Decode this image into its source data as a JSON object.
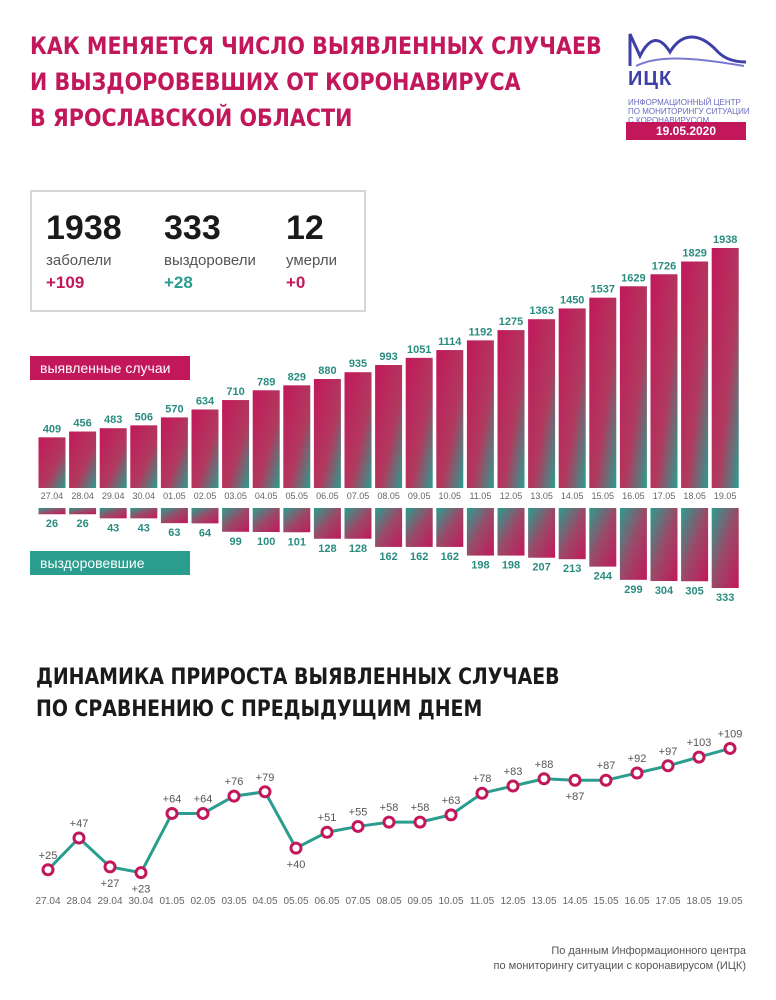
{
  "header": {
    "title_lines": [
      "КАК МЕНЯЕТСЯ ЧИСЛО ВЫЯВЛЕННЫХ СЛУЧАЕВ",
      "И ВЫЗДОРОВЕВШИХ ОТ КОРОНАВИРУСА",
      "В ЯРОСЛАВСКОЙ ОБЛАСТИ"
    ]
  },
  "logo": {
    "name": "ИЦК",
    "sub_lines": [
      "ИНФОРМАЦИОННЫЙ ЦЕНТР",
      "ПО МОНИТОРИНГУ СИТУАЦИИ",
      "С КОРОНАВИРУСОМ"
    ],
    "date": "19.05.2020"
  },
  "summary": {
    "cases": {
      "value": "1938",
      "label": "заболели",
      "delta": "+109"
    },
    "recovered": {
      "value": "333",
      "label": "выздоровели",
      "delta": "+28"
    },
    "deaths": {
      "value": "12",
      "label": "умерли",
      "delta": "+0"
    }
  },
  "colors": {
    "accent": "#c2185b",
    "teal": "#2a9d8f",
    "text": "#1a1a1a"
  },
  "chart_data": [
    {
      "type": "bar",
      "legend_label": "выявленные случаи",
      "categories": [
        "27.04",
        "28.04",
        "29.04",
        "30.04",
        "01.05",
        "02.05",
        "03.05",
        "04.05",
        "05.05",
        "06.05",
        "07.05",
        "08.05",
        "09.05",
        "10.05",
        "11.05",
        "12.05",
        "13.05",
        "14.05",
        "15.05",
        "16.05",
        "17.05",
        "18.05",
        "19.05"
      ],
      "values": [
        409,
        456,
        483,
        506,
        570,
        634,
        710,
        789,
        829,
        880,
        935,
        993,
        1051,
        1114,
        1192,
        1275,
        1363,
        1450,
        1537,
        1629,
        1726,
        1829,
        1938
      ]
    },
    {
      "type": "bar",
      "legend_label": "выздоровевшие",
      "categories": [
        "27.04",
        "28.04",
        "29.04",
        "30.04",
        "01.05",
        "02.05",
        "03.05",
        "04.05",
        "05.05",
        "06.05",
        "07.05",
        "08.05",
        "09.05",
        "10.05",
        "11.05",
        "12.05",
        "13.05",
        "14.05",
        "15.05",
        "16.05",
        "17.05",
        "18.05",
        "19.05"
      ],
      "values": [
        26,
        26,
        43,
        43,
        63,
        64,
        99,
        100,
        101,
        128,
        128,
        162,
        162,
        162,
        198,
        198,
        207,
        213,
        244,
        299,
        304,
        305,
        333
      ]
    },
    {
      "type": "line",
      "title_lines": [
        "ДИНАМИКА ПРИРОСТА ВЫЯВЛЕННЫХ СЛУЧАЕВ",
        "ПО СРАВНЕНИЮ С ПРЕДЫДУЩИМ ДНЕМ"
      ],
      "categories": [
        "27.04",
        "28.04",
        "29.04",
        "30.04",
        "01.05",
        "02.05",
        "03.05",
        "04.05",
        "05.05",
        "06.05",
        "07.05",
        "08.05",
        "09.05",
        "10.05",
        "11.05",
        "12.05",
        "13.05",
        "14.05",
        "15.05",
        "16.05",
        "17.05",
        "18.05",
        "19.05"
      ],
      "values": [
        25,
        47,
        27,
        23,
        64,
        64,
        76,
        79,
        40,
        51,
        55,
        58,
        58,
        63,
        78,
        83,
        88,
        87,
        87,
        92,
        97,
        103,
        109
      ],
      "labels": [
        "+25",
        "+47",
        "+27",
        "+23",
        "+64",
        "+64",
        "+76",
        "+79",
        "+40",
        "+51",
        "+55",
        "+58",
        "+58",
        "+63",
        "+78",
        "+83",
        "+88",
        "+87",
        "+87",
        "+92",
        "+97",
        "+103",
        "+109"
      ]
    }
  ],
  "source": {
    "lines": [
      "По данным Информационного центра",
      "по мониторингу ситуации с коронавирусом (ИЦК)"
    ]
  }
}
